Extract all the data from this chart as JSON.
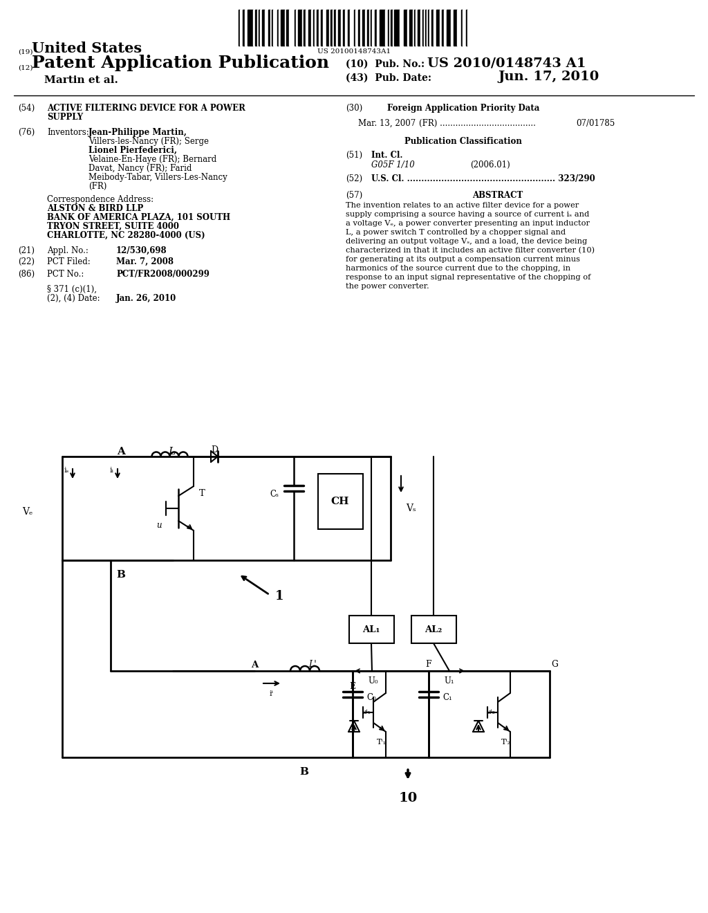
{
  "bg": "#ffffff",
  "barcode_text": "US 20100148743A1",
  "abstract_lines": [
    "The invention relates to an active filter device for a power",
    "supply comprising a source having a source of current iₛ and",
    "a voltage Vₑ, a power converter presenting an input inductor",
    "L, a power switch T controlled by a chopper signal and",
    "delivering an output voltage Vₛ, and a load, the device being",
    "characterized in that it includes an active filter converter (10)",
    "for generating at its output a compensation current minus",
    "harmonics of the source current due to the chopping, in",
    "response to an input signal representative of the chopping of",
    "the power converter."
  ]
}
